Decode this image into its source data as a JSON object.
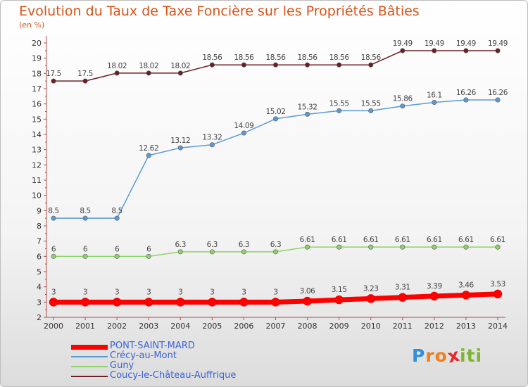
{
  "title": "Evolution du Taux de Taxe Foncière sur les Propriétés Bâties",
  "unit": "(en %)",
  "logo": {
    "letters": [
      "P",
      "r",
      "o",
      "x",
      "i",
      "t",
      "i"
    ],
    "colors": [
      "#2f8fd8",
      "#f07f1d",
      "#f07f1d",
      "#e8252a",
      "#7db72f",
      "#7db72f",
      "#7db72f"
    ]
  },
  "chart_data": {
    "type": "line",
    "x": [
      2000,
      2001,
      2002,
      2003,
      2004,
      2005,
      2006,
      2007,
      2008,
      2009,
      2010,
      2011,
      2012,
      2013,
      2014
    ],
    "ylim": [
      2,
      20
    ],
    "yticks": [
      2,
      3,
      4,
      5,
      6,
      7,
      8,
      9,
      10,
      11,
      12,
      13,
      14,
      15,
      16,
      17,
      18,
      19,
      20
    ],
    "grid": false,
    "legend_position": "bottom-left",
    "series": [
      {
        "name": "Coucy-le-Château-Auffrique",
        "color": "#6b1f25",
        "width": 1.5,
        "values": [
          17.5,
          17.5,
          18.02,
          18.02,
          18.02,
          18.56,
          18.56,
          18.56,
          18.56,
          18.56,
          18.56,
          19.49,
          19.49,
          19.49,
          19.49
        ],
        "labels": [
          "17.5",
          "17.5",
          "18.02",
          "18.02",
          "18.02",
          "18.56",
          "18.56",
          "18.56",
          "18.56",
          "18.56",
          "18.56",
          "19.49",
          "19.49",
          "19.49",
          "19.49"
        ]
      },
      {
        "name": "Crécy-au-Mont",
        "color": "#5b9bd5",
        "width": 1.5,
        "values": [
          8.5,
          8.5,
          8.5,
          12.62,
          13.12,
          13.32,
          14.09,
          15.02,
          15.32,
          15.55,
          15.55,
          15.86,
          16.1,
          16.26,
          16.26
        ],
        "labels": [
          "8.5",
          "8.5",
          "8.5",
          "12.62",
          "13.12",
          "13.32",
          "14.09",
          "15.02",
          "15.32",
          "15.55",
          "15.55",
          "15.86",
          "16.1",
          "16.26",
          "16.26"
        ]
      },
      {
        "name": "Guny",
        "color": "#8fd36a",
        "width": 1.5,
        "values": [
          6,
          6,
          6,
          6,
          6.3,
          6.3,
          6.3,
          6.3,
          6.61,
          6.61,
          6.61,
          6.61,
          6.61,
          6.61,
          6.61
        ],
        "labels": [
          "6",
          "6",
          "6",
          "6",
          "6.3",
          "6.3",
          "6.3",
          "6.3",
          "6.61",
          "6.61",
          "6.61",
          "6.61",
          "6.61",
          "6.61",
          "6.61"
        ]
      },
      {
        "name": "PONT-SAINT-MARD",
        "color": "#ff0000",
        "width": 7,
        "values": [
          3,
          3,
          3,
          3,
          3,
          3,
          3,
          3,
          3.06,
          3.15,
          3.23,
          3.31,
          3.39,
          3.46,
          3.53
        ],
        "labels": [
          "3",
          "3",
          "3",
          "3",
          "3",
          "3",
          "3",
          "3",
          "3.06",
          "3.15",
          "3.23",
          "3.31",
          "3.39",
          "3.46",
          "3.53"
        ]
      }
    ],
    "legend": [
      "PONT-SAINT-MARD",
      "Crécy-au-Mont",
      "Guny",
      "Coucy-le-Château-Auffrique"
    ]
  }
}
